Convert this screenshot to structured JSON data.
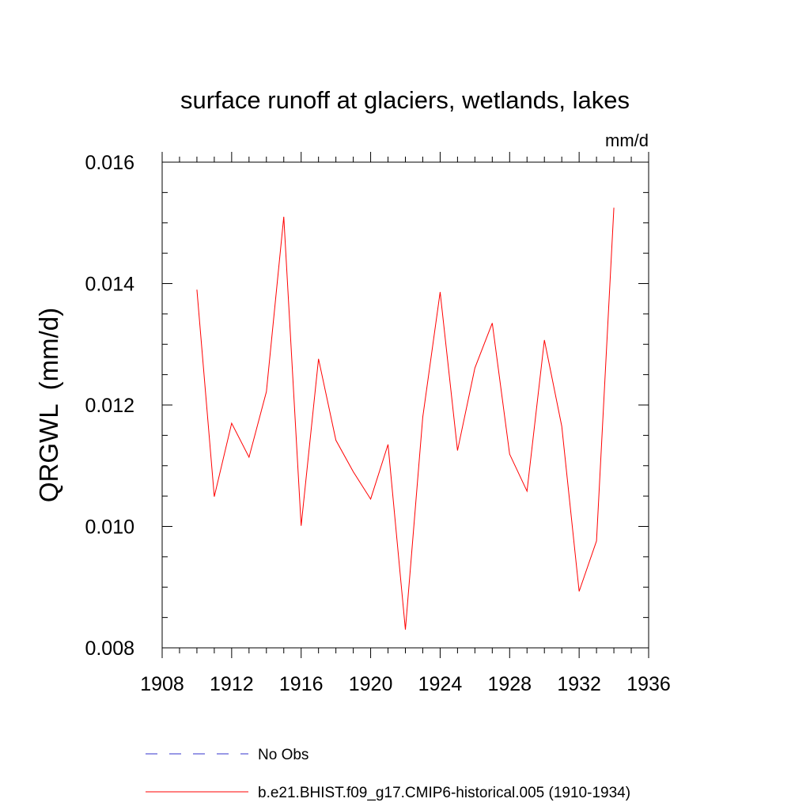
{
  "chart_data": {
    "type": "line",
    "title": "surface runoff at glaciers, wetlands, lakes",
    "units": "mm/d",
    "ylabel": "QRGWL  (mm/d)",
    "xlabel": "",
    "xlim": [
      1908,
      1936
    ],
    "ylim": [
      0.008,
      0.016
    ],
    "x_ticks": [
      1908,
      1912,
      1916,
      1920,
      1924,
      1928,
      1932,
      1936
    ],
    "x_tick_labels": [
      "1908",
      "1912",
      "1916",
      "1920",
      "1924",
      "1928",
      "1932",
      "1936"
    ],
    "y_ticks": [
      0.008,
      0.01,
      0.012,
      0.014,
      0.016
    ],
    "y_tick_labels": [
      "0.008",
      "0.010",
      "0.012",
      "0.014",
      "0.016"
    ],
    "grid": false,
    "legend_position": "bottom",
    "series": [
      {
        "name": "b.e21.BHIST.f09_g17.CMIP6-historical.005 (1910-1934)",
        "color": "#ff0000",
        "style": "solid",
        "x": [
          1910,
          1911,
          1912,
          1913,
          1914,
          1915,
          1916,
          1917,
          1918,
          1919,
          1920,
          1921,
          1922,
          1923,
          1924,
          1925,
          1926,
          1927,
          1928,
          1929,
          1930,
          1931,
          1932,
          1933,
          1934
        ],
        "values": [
          0.0139,
          0.01049,
          0.0117,
          0.01114,
          0.01222,
          0.0151,
          0.01001,
          0.01276,
          0.01142,
          0.0109,
          0.01045,
          0.01135,
          0.0083,
          0.0118,
          0.01386,
          0.01125,
          0.01261,
          0.01335,
          0.01119,
          0.01058,
          0.01307,
          0.01165,
          0.00893,
          0.00976,
          0.01525
        ]
      }
    ],
    "legend": [
      {
        "label": "No Obs",
        "color": "#3333cc",
        "style": "dashed"
      },
      {
        "label": "b.e21.BHIST.f09_g17.CMIP6-historical.005 (1910-1934)",
        "color": "#ff0000",
        "style": "solid"
      }
    ]
  }
}
